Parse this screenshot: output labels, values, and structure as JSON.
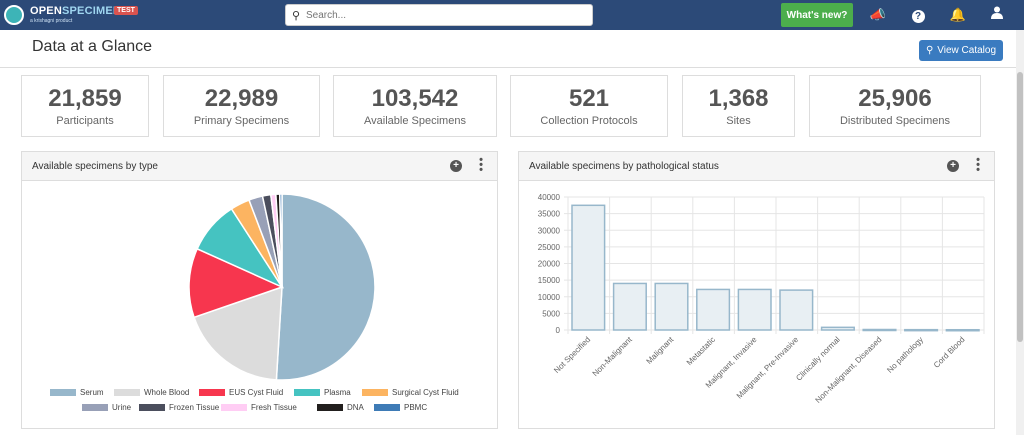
{
  "app": {
    "brand_open": "OPEN",
    "brand_specimen": "SPECIMEN",
    "tagline": "a krishagni product",
    "env_badge": "TEST"
  },
  "search": {
    "placeholder": "Search..."
  },
  "nav": {
    "whats_new": "What's new?",
    "icons": [
      "megaphone-icon",
      "help-icon",
      "bell-icon",
      "user-icon"
    ]
  },
  "page": {
    "title": "Data at a Glance",
    "view_catalog": "View Catalog"
  },
  "stats": [
    {
      "value": "21,859",
      "label": "Participants"
    },
    {
      "value": "22,989",
      "label": "Primary Specimens"
    },
    {
      "value": "103,542",
      "label": "Available Specimens"
    },
    {
      "value": "521",
      "label": "Collection Protocols"
    },
    {
      "value": "1,368",
      "label": "Sites"
    },
    {
      "value": "25,906",
      "label": "Distributed Specimens"
    }
  ],
  "panels": {
    "by_type": {
      "title": "Available specimens by type"
    },
    "by_path": {
      "title": "Available specimens by pathological status"
    }
  },
  "chart_data": [
    {
      "type": "pie",
      "categories": [
        "Serum",
        "Whole Blood",
        "EUS Cyst Fluid",
        "Plasma",
        "Surgical Cyst Fluid",
        "Urine",
        "Frozen Tissue",
        "Fresh Tissue",
        "DNA",
        "PBMC"
      ],
      "values": [
        53000,
        19500,
        12500,
        9500,
        3500,
        2500,
        1500,
        900,
        700,
        400
      ],
      "colors": [
        "#97b7cb",
        "#dcdcdc",
        "#f7364e",
        "#45c3c1",
        "#fcb461",
        "#98a0b7",
        "#4b4e5d",
        "#ffcdf4",
        "#221f1e",
        "#3e7bb6"
      ],
      "legend": "bottom"
    },
    {
      "type": "bar",
      "categories": [
        "Not Specified",
        "Non-Malignant",
        "Malignant",
        "Metastatic",
        "Malignant, Invasive",
        "Malignant, Pre-Invasive",
        "Clinically normal",
        "Non-Malignant, Diseased",
        "No pathology",
        "Cord Blood"
      ],
      "values": [
        37500,
        14000,
        14000,
        12200,
        12200,
        12000,
        800,
        150,
        100,
        80
      ],
      "ylim": [
        0,
        40000
      ],
      "yticks": [
        "40000",
        "35000",
        "30000",
        "25000",
        "20000",
        "15000",
        "10000",
        "5000",
        "0"
      ],
      "grid": true,
      "bar_color": "#e8eff3",
      "bar_border": "#97b7cb"
    }
  ]
}
